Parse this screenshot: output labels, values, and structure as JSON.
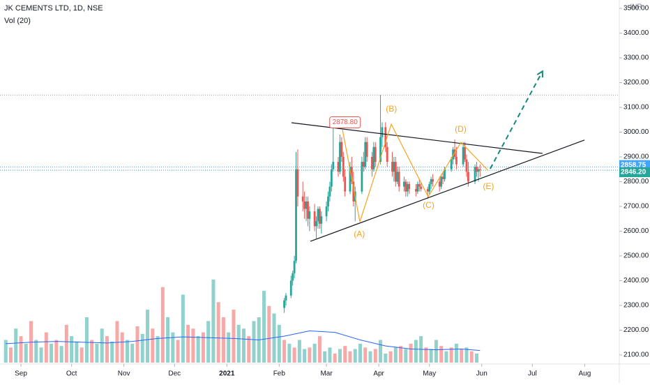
{
  "chart_data": {
    "type": "candlestick",
    "title": "JK CEMENTS LTD, 1D, NSE",
    "subtitle": "Vol (20)",
    "currency": "INR",
    "xlim": [
      -12.4,
      354.5
    ],
    "xticks": [
      {
        "value": 0,
        "label": "Sep"
      },
      {
        "value": 30,
        "label": "Oct"
      },
      {
        "value": 61,
        "label": "Nov"
      },
      {
        "value": 91,
        "label": "Dec"
      },
      {
        "value": 122,
        "label": "2021"
      },
      {
        "value": 153,
        "label": "Feb"
      },
      {
        "value": 181,
        "label": "Mar"
      },
      {
        "value": 212,
        "label": "Apr"
      },
      {
        "value": 242,
        "label": "May"
      },
      {
        "value": 273,
        "label": "Jun"
      },
      {
        "value": 303,
        "label": "Jul"
      },
      {
        "value": 334,
        "label": "Aug"
      }
    ],
    "ylim": [
      2063.4,
      3533.8
    ],
    "yticks": [
      {
        "value": 2100,
        "label": "2100.00"
      },
      {
        "value": 2200,
        "label": "2200.00"
      },
      {
        "value": 2300,
        "label": "2300.00"
      },
      {
        "value": 2400,
        "label": "2400.00"
      },
      {
        "value": 2500,
        "label": "2500.00"
      },
      {
        "value": 2600,
        "label": "2600.00"
      },
      {
        "value": 2700,
        "label": "2700.00"
      },
      {
        "value": 2800,
        "label": "2800.00"
      },
      {
        "value": 2900,
        "label": "2900.00"
      },
      {
        "value": 3000,
        "label": "3000.00"
      },
      {
        "value": 3100,
        "label": "3100.00"
      },
      {
        "value": 3200,
        "label": "3200.00"
      },
      {
        "value": 3300,
        "label": "3300.00"
      },
      {
        "value": 3400,
        "label": "3400.00"
      },
      {
        "value": 3500,
        "label": "3500.00"
      }
    ],
    "up_color": "#26a69a",
    "down_color": "#ef5350",
    "x": [
      156,
      157,
      160,
      161,
      162,
      163,
      164,
      167,
      168,
      169,
      170,
      171,
      174,
      175,
      176,
      177,
      178,
      181,
      182,
      183,
      184,
      185,
      188,
      189,
      190,
      191,
      192,
      195,
      196,
      197,
      198,
      202,
      203,
      204,
      205,
      208,
      209,
      210,
      213,
      214,
      216,
      217,
      220,
      221,
      222,
      223,
      224,
      227,
      228,
      229,
      230,
      234,
      235,
      236,
      237,
      241,
      242,
      243,
      244,
      248,
      249,
      250,
      251,
      255,
      256,
      257,
      258,
      262,
      263,
      264,
      265,
      269,
      270,
      271,
      272
    ],
    "open": [
      2290,
      2320,
      2340,
      2400,
      2430,
      2480,
      2850,
      2740,
      2720,
      2690,
      2720,
      2650,
      2680,
      2620,
      2640,
      2690,
      2630,
      2660,
      2700,
      2740,
      2780,
      2850,
      2880,
      2840,
      2960,
      2900,
      2820,
      2760,
      2860,
      2800,
      2720,
      2760,
      2880,
      2860,
      2960,
      2900,
      2850,
      2940,
      2880,
      2980,
      3020,
      2940,
      2880,
      2840,
      2880,
      2800,
      2840,
      2780,
      2800,
      2760,
      2790,
      2770,
      2760,
      2790,
      2780,
      2770,
      2760,
      2790,
      2810,
      2800,
      2780,
      2820,
      2810,
      2850,
      2890,
      2930,
      2900,
      2870,
      2940,
      2890,
      2840,
      2800,
      2860,
      2840,
      2850
    ],
    "high": [
      2330,
      2350,
      2420,
      2440,
      2500,
      2920,
      2930,
      2800,
      2760,
      2740,
      2740,
      2700,
      2710,
      2660,
      2700,
      2700,
      2680,
      2720,
      2760,
      2800,
      2870,
      3020,
      2900,
      2990,
      2980,
      2920,
      2850,
      2880,
      2900,
      2840,
      2780,
      2900,
      2920,
      2980,
      2980,
      2920,
      2960,
      2960,
      3150,
      3040,
      3040,
      2960,
      2920,
      2900,
      2900,
      2860,
      2860,
      2820,
      2810,
      2800,
      2800,
      2790,
      2800,
      2810,
      2800,
      2780,
      2800,
      2820,
      2830,
      2820,
      2830,
      2840,
      2860,
      2900,
      2940,
      2970,
      2940,
      2960,
      2960,
      2910,
      2880,
      2870,
      2880,
      2860,
      2870
    ],
    "low": [
      2270,
      2300,
      2330,
      2380,
      2410,
      2470,
      2700,
      2680,
      2650,
      2640,
      2620,
      2600,
      2600,
      2570,
      2610,
      2610,
      2590,
      2640,
      2680,
      2720,
      2760,
      2840,
      2820,
      2830,
      2880,
      2800,
      2740,
      2750,
      2790,
      2700,
      2640,
      2750,
      2840,
      2850,
      2880,
      2820,
      2840,
      2860,
      2870,
      2940,
      2920,
      2860,
      2820,
      2800,
      2780,
      2790,
      2760,
      2760,
      2740,
      2740,
      2750,
      2740,
      2750,
      2760,
      2760,
      2730,
      2750,
      2770,
      2780,
      2760,
      2770,
      2790,
      2800,
      2840,
      2870,
      2890,
      2850,
      2860,
      2880,
      2820,
      2780,
      2790,
      2820,
      2800,
      2820
    ],
    "close": [
      2320,
      2340,
      2400,
      2430,
      2480,
      2850,
      2740,
      2720,
      2690,
      2720,
      2650,
      2680,
      2620,
      2640,
      2690,
      2630,
      2660,
      2700,
      2740,
      2780,
      2850,
      2880,
      2840,
      2960,
      2900,
      2820,
      2760,
      2860,
      2800,
      2720,
      2760,
      2880,
      2860,
      2960,
      2900,
      2850,
      2940,
      2880,
      2980,
      3020,
      2940,
      2880,
      2840,
      2880,
      2800,
      2840,
      2780,
      2800,
      2760,
      2790,
      2770,
      2760,
      2790,
      2780,
      2770,
      2760,
      2790,
      2810,
      2800,
      2780,
      2820,
      2810,
      2850,
      2890,
      2930,
      2900,
      2870,
      2940,
      2890,
      2840,
      2800,
      2860,
      2840,
      2850,
      2846.2
    ],
    "volume": {
      "ylim": [
        0,
        120
      ],
      "x": [
        -9,
        -6,
        -3,
        0,
        3,
        6,
        9,
        12,
        15,
        18,
        21,
        24,
        27,
        30,
        33,
        36,
        39,
        42,
        45,
        48,
        51,
        54,
        57,
        60,
        63,
        66,
        69,
        72,
        75,
        78,
        81,
        84,
        87,
        90,
        93,
        96,
        99,
        102,
        105,
        108,
        111,
        114,
        117,
        120,
        123,
        126,
        129,
        132,
        135,
        138,
        141,
        144,
        147,
        150,
        153,
        156,
        159,
        162,
        165,
        168,
        171,
        174,
        177,
        180,
        183,
        186,
        189,
        192,
        195,
        198,
        201,
        204,
        207,
        210,
        213,
        216,
        219,
        222,
        225,
        228,
        231,
        234,
        237,
        240,
        243,
        246,
        249,
        252,
        255,
        258,
        261,
        264,
        267,
        270
      ],
      "values": [
        30,
        20,
        45,
        35,
        25,
        55,
        30,
        20,
        40,
        25,
        30,
        22,
        50,
        35,
        28,
        20,
        60,
        30,
        25,
        45,
        35,
        28,
        55,
        40,
        30,
        25,
        48,
        38,
        70,
        45,
        35,
        100,
        60,
        40,
        30,
        90,
        50,
        45,
        35,
        40,
        55,
        110,
        80,
        60,
        40,
        70,
        50,
        45,
        35,
        55,
        60,
        95,
        75,
        65,
        50,
        30,
        25,
        20,
        30,
        18,
        20,
        25,
        35,
        15,
        20,
        12,
        18,
        22,
        15,
        18,
        25,
        20,
        15,
        18,
        30,
        12,
        15,
        20,
        22,
        18,
        25,
        30,
        35,
        20,
        18,
        30,
        22,
        15,
        20,
        25,
        18,
        20,
        15,
        12
      ],
      "up": [
        1,
        0,
        1,
        0,
        1,
        0,
        1,
        1,
        0,
        1,
        0,
        1,
        0,
        1,
        1,
        0,
        1,
        0,
        1,
        1,
        0,
        1,
        0,
        0,
        1,
        1,
        0,
        1,
        1,
        0,
        1,
        0,
        1,
        1,
        0,
        1,
        0,
        0,
        1,
        0,
        1,
        1,
        0,
        0,
        1,
        0,
        1,
        1,
        0,
        1,
        1,
        1,
        0,
        1,
        1,
        0,
        1,
        0,
        1,
        1,
        0,
        1,
        0,
        1,
        1,
        0,
        1,
        0,
        0,
        1,
        1,
        0,
        1,
        0,
        1,
        1,
        0,
        1,
        0,
        1,
        0,
        1,
        1,
        0,
        1,
        1,
        0,
        1,
        0,
        1,
        0,
        1,
        0,
        1
      ]
    },
    "volume_ma": {
      "color": "#2962ff",
      "x": [
        -9,
        6,
        21,
        36,
        51,
        66,
        81,
        96,
        111,
        126,
        141,
        156,
        171,
        186,
        201,
        216,
        231,
        246,
        261,
        272
      ],
      "values": [
        25,
        27,
        28,
        27,
        26,
        28,
        32,
        34,
        33,
        32,
        30,
        35,
        42,
        40,
        30,
        22,
        18,
        17,
        18,
        16
      ]
    },
    "price_lines": [
      {
        "value": 3150,
        "color": "#9598a1"
      },
      {
        "value": 2858.75,
        "label": "2858.75",
        "color": "#42a5f5"
      },
      {
        "value": 2846.2,
        "label": "2846.20",
        "color": "#26a69a"
      }
    ],
    "high_label": {
      "x": 192,
      "value": 2878.8,
      "label": "2878.80"
    },
    "trend_lines": [
      {
        "color": "#131722",
        "points": [
          [
            160.3,
            3038
          ],
          [
            309,
            2914
          ]
        ]
      },
      {
        "color": "#131722",
        "points": [
          [
            171.5,
            2559
          ],
          [
            333.9,
            2968
          ]
        ]
      },
      {
        "color": "#f7a21b",
        "points": [
          [
            190.5,
            3010
          ],
          [
            200.8,
            2638
          ],
          [
            219.4,
            3032
          ],
          [
            241.3,
            2739
          ],
          [
            260.7,
            2959
          ],
          [
            276.9,
            2844
          ]
        ]
      }
    ],
    "arrow": {
      "color": "#14897a",
      "points": [
        [
          278,
          2852
        ],
        [
          309,
          3246
        ]
      ]
    },
    "wave_labels": [
      {
        "text": "(A)",
        "x": 200.5,
        "value": 2587
      },
      {
        "text": "(B)",
        "x": 219.5,
        "value": 3092
      },
      {
        "text": "(C)",
        "x": 241.5,
        "value": 2703
      },
      {
        "text": "(D)",
        "x": 260.5,
        "value": 3010
      },
      {
        "text": "(E)",
        "x": 277,
        "value": 2779
      }
    ]
  }
}
